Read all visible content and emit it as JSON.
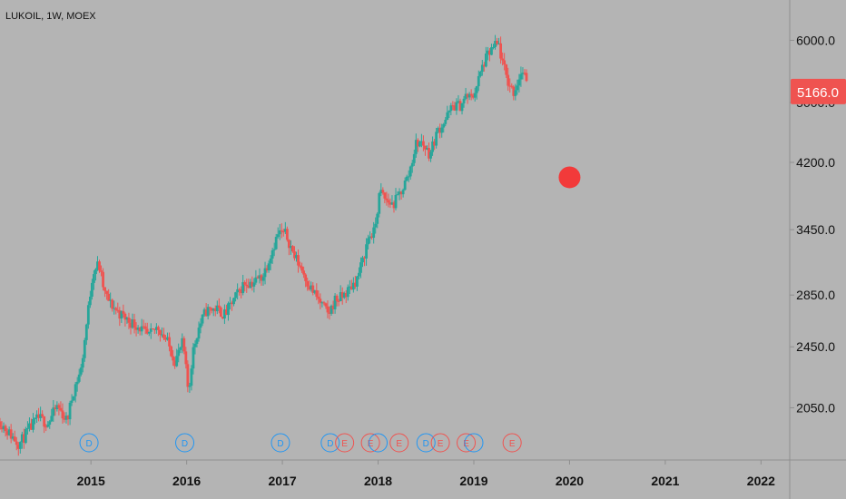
{
  "header": {
    "symbol_label": "LUKOIL, 1W, MOEX"
  },
  "colors": {
    "background": "#b4b4b4",
    "up": "#26a69a",
    "down": "#ef5350",
    "price_tag": "#ef5350",
    "dividend_marker": "#2196f3",
    "earnings_marker": "#ef5350",
    "axis_text": "#111111",
    "axis_line": "#8f8f8f"
  },
  "annotation": {
    "type": "dot",
    "color": "#f23a3a",
    "date": 2020.0,
    "price": 4020
  },
  "chart_data": {
    "type": "candlestick",
    "title": "",
    "xlabel": "",
    "ylabel": "",
    "grid": false,
    "y_scale": "log",
    "xlim": [
      2014.05,
      2022.3
    ],
    "ylim": [
      1760,
      6750
    ],
    "x_ticks": [
      2015,
      2016,
      2017,
      2018,
      2019,
      2020,
      2021,
      2022
    ],
    "x_tick_labels": [
      "2015",
      "2016",
      "2017",
      "2018",
      "2019",
      "2020",
      "2021",
      "2022"
    ],
    "y_ticks": [
      2050,
      2450,
      2850,
      3450,
      4200,
      5000,
      6000
    ],
    "y_tick_labels": [
      "2050.0",
      "2450.0",
      "2850.0",
      "3450.0",
      "4200.0",
      "5000.0",
      "6000.0"
    ],
    "last_price": 5166,
    "last_price_label": "5166.0",
    "price_path": [
      [
        2014.05,
        1970
      ],
      [
        2014.15,
        1900
      ],
      [
        2014.25,
        1845
      ],
      [
        2014.35,
        1920
      ],
      [
        2014.45,
        1990
      ],
      [
        2014.55,
        1960
      ],
      [
        2014.65,
        2060
      ],
      [
        2014.75,
        1970
      ],
      [
        2014.82,
        2160
      ],
      [
        2014.9,
        2300
      ],
      [
        2014.96,
        2650
      ],
      [
        2015.02,
        3050
      ],
      [
        2015.08,
        3120
      ],
      [
        2015.14,
        2870
      ],
      [
        2015.2,
        2780
      ],
      [
        2015.3,
        2700
      ],
      [
        2015.4,
        2640
      ],
      [
        2015.5,
        2600
      ],
      [
        2015.6,
        2520
      ],
      [
        2015.7,
        2600
      ],
      [
        2015.8,
        2480
      ],
      [
        2015.88,
        2350
      ],
      [
        2015.96,
        2480
      ],
      [
        2016.02,
        2130
      ],
      [
        2016.06,
        2400
      ],
      [
        2016.12,
        2580
      ],
      [
        2016.2,
        2720
      ],
      [
        2016.3,
        2740
      ],
      [
        2016.4,
        2690
      ],
      [
        2016.5,
        2820
      ],
      [
        2016.6,
        2950
      ],
      [
        2016.7,
        2960
      ],
      [
        2016.8,
        3020
      ],
      [
        2016.88,
        3220
      ],
      [
        2016.96,
        3420
      ],
      [
        2017.04,
        3400
      ],
      [
        2017.12,
        3200
      ],
      [
        2017.2,
        3080
      ],
      [
        2017.28,
        2930
      ],
      [
        2017.36,
        2830
      ],
      [
        2017.42,
        2760
      ],
      [
        2017.48,
        2690
      ],
      [
        2017.55,
        2810
      ],
      [
        2017.62,
        2830
      ],
      [
        2017.7,
        2900
      ],
      [
        2017.78,
        2990
      ],
      [
        2017.84,
        3150
      ],
      [
        2017.9,
        3380
      ],
      [
        2017.96,
        3420
      ],
      [
        2018.02,
        3860
      ],
      [
        2018.08,
        3760
      ],
      [
        2018.16,
        3710
      ],
      [
        2018.24,
        3860
      ],
      [
        2018.32,
        4050
      ],
      [
        2018.4,
        4450
      ],
      [
        2018.46,
        4450
      ],
      [
        2018.54,
        4300
      ],
      [
        2018.62,
        4600
      ],
      [
        2018.7,
        4750
      ],
      [
        2018.78,
        4950
      ],
      [
        2018.86,
        4960
      ],
      [
        2018.92,
        5100
      ],
      [
        2018.98,
        5060
      ],
      [
        2019.04,
        5300
      ],
      [
        2019.1,
        5600
      ],
      [
        2019.16,
        5780
      ],
      [
        2019.22,
        5900
      ],
      [
        2019.26,
        5920
      ],
      [
        2019.3,
        5600
      ],
      [
        2019.36,
        5300
      ],
      [
        2019.42,
        5150
      ],
      [
        2019.48,
        5420
      ],
      [
        2019.52,
        5480
      ],
      [
        2019.56,
        5166
      ]
    ],
    "events": [
      {
        "type": "dividend",
        "label": "D",
        "date": 2014.98
      },
      {
        "type": "dividend",
        "label": "D",
        "date": 2015.98
      },
      {
        "type": "dividend",
        "label": "D",
        "date": 2016.98
      },
      {
        "type": "dividend",
        "label": "D",
        "date": 2017.5
      },
      {
        "type": "earnings",
        "label": "E",
        "date": 2017.65
      },
      {
        "type": "earnings",
        "label": "E",
        "date": 2017.92
      },
      {
        "type": "dividend",
        "label": "",
        "date": 2018.0
      },
      {
        "type": "earnings",
        "label": "E",
        "date": 2018.22
      },
      {
        "type": "dividend",
        "label": "D",
        "date": 2018.5
      },
      {
        "type": "earnings",
        "label": "E",
        "date": 2018.65
      },
      {
        "type": "earnings",
        "label": "E",
        "date": 2018.92
      },
      {
        "type": "dividend",
        "label": "",
        "date": 2019.0
      },
      {
        "type": "earnings",
        "label": "E",
        "date": 2019.4
      }
    ]
  }
}
